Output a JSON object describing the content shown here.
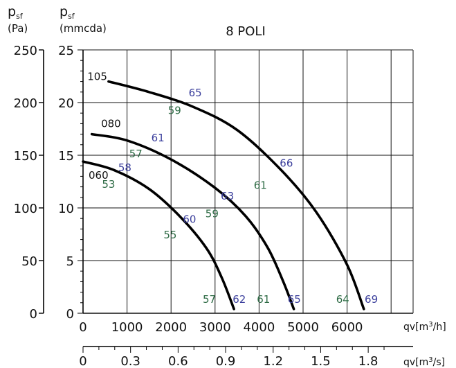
{
  "chart_data": {
    "type": "line",
    "title": "8 POLI",
    "left_axis": {
      "label_main": "p",
      "label_sub": "sf",
      "unit": "(Pa)",
      "ticks": [
        "250",
        "200",
        "150",
        "100",
        "50",
        "0"
      ]
    },
    "right_axis": {
      "label_main": "p",
      "label_sub": "sf",
      "unit": "(mmcda)",
      "ticks": [
        "25",
        "20",
        "15",
        "10",
        "5",
        "0"
      ]
    },
    "x_axis_primary": {
      "label": "qv[m3/h]",
      "label_base": "qv[m",
      "label_sup": "3",
      "label_end": "/h]",
      "ticks": [
        "0",
        "1000",
        "2000",
        "3000",
        "4000",
        "5000",
        "6000"
      ],
      "xlim": [
        0,
        7500
      ]
    },
    "x_axis_secondary": {
      "label": "qv[m3/s]",
      "label_base": "qv[m",
      "label_sup": "3",
      "label_end": "/s]",
      "ticks": [
        "0",
        "0.3",
        "0.6",
        "0.9",
        "1.2",
        "1.5",
        "1.8"
      ]
    },
    "ylim": [
      0,
      25
    ],
    "grid": true,
    "series": [
      {
        "name": "105",
        "points": [
          [
            580,
            22.0
          ],
          [
            1500,
            21.0
          ],
          [
            2500,
            19.6
          ],
          [
            3500,
            17.4
          ],
          [
            4500,
            13.6
          ],
          [
            5300,
            9.6
          ],
          [
            6000,
            4.6
          ],
          [
            6380,
            0.4
          ]
        ]
      },
      {
        "name": "080",
        "points": [
          [
            200,
            17.0
          ],
          [
            1000,
            16.4
          ],
          [
            2000,
            14.6
          ],
          [
            3000,
            11.9
          ],
          [
            3700,
            9.2
          ],
          [
            4200,
            6.2
          ],
          [
            4550,
            3.0
          ],
          [
            4790,
            0.4
          ]
        ]
      },
      {
        "name": "060",
        "points": [
          [
            0,
            14.4
          ],
          [
            700,
            13.6
          ],
          [
            1500,
            11.8
          ],
          [
            2200,
            9.2
          ],
          [
            2800,
            6.2
          ],
          [
            3150,
            3.4
          ],
          [
            3430,
            0.4
          ]
        ]
      }
    ],
    "annotations": [
      {
        "text": "65",
        "x": 2550,
        "y": 20.6,
        "color": "blue"
      },
      {
        "text": "59",
        "x": 2080,
        "y": 18.9,
        "color": "green"
      },
      {
        "text": "61",
        "x": 1700,
        "y": 16.3,
        "color": "blue"
      },
      {
        "text": "57",
        "x": 1200,
        "y": 14.8,
        "color": "green"
      },
      {
        "text": "58",
        "x": 950,
        "y": 13.5,
        "color": "blue"
      },
      {
        "text": "53",
        "x": 580,
        "y": 11.9,
        "color": "green"
      },
      {
        "text": "66",
        "x": 4620,
        "y": 13.9,
        "color": "blue"
      },
      {
        "text": "61",
        "x": 4030,
        "y": 11.8,
        "color": "green"
      },
      {
        "text": "63",
        "x": 3280,
        "y": 10.8,
        "color": "blue"
      },
      {
        "text": "59",
        "x": 2930,
        "y": 9.1,
        "color": "green"
      },
      {
        "text": "60",
        "x": 2420,
        "y": 8.6,
        "color": "blue"
      },
      {
        "text": "55",
        "x": 1980,
        "y": 7.1,
        "color": "green"
      },
      {
        "text": "57",
        "x": 2870,
        "y": 1.0,
        "color": "green"
      },
      {
        "text": "62",
        "x": 3550,
        "y": 1.0,
        "color": "blue"
      },
      {
        "text": "61",
        "x": 4100,
        "y": 1.0,
        "color": "green"
      },
      {
        "text": "65",
        "x": 4800,
        "y": 1.0,
        "color": "blue"
      },
      {
        "text": "64",
        "x": 5900,
        "y": 1.0,
        "color": "green"
      },
      {
        "text": "69",
        "x": 6550,
        "y": 1.0,
        "color": "blue"
      }
    ],
    "colors": {
      "curve": "#000000",
      "grid": "#111111",
      "blue": "#3b3f9c",
      "green": "#2e6b45"
    }
  }
}
